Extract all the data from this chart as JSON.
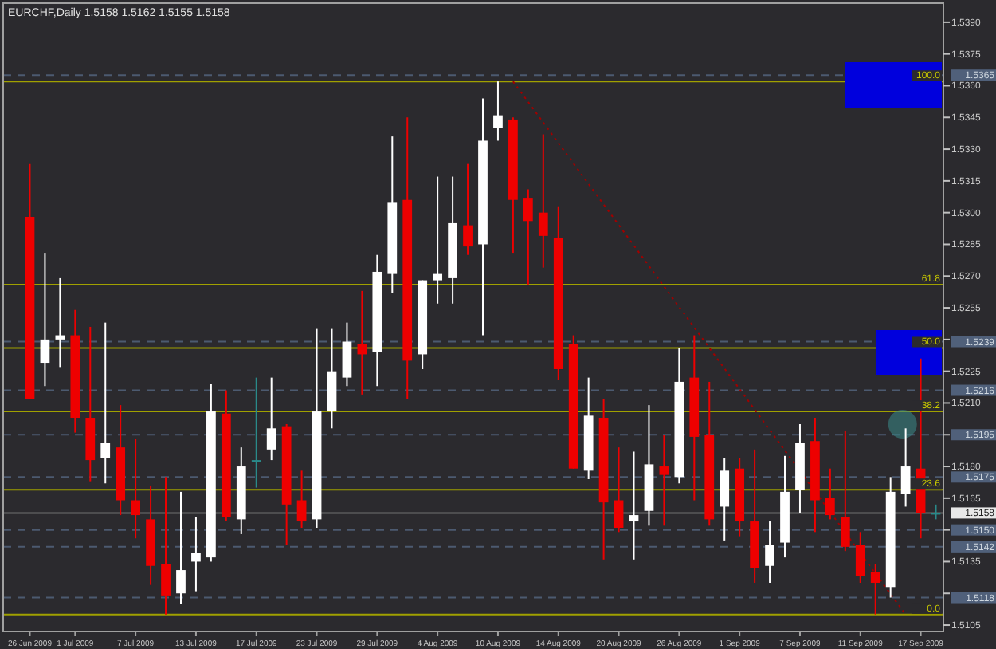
{
  "chart_data": {
    "type": "candlestick",
    "title": "EURCHF,Daily 1.5158 1.5162 1.5155 1.5158",
    "categories": [
      "26 Jun 2009",
      null,
      null,
      "1 Jul 2009",
      null,
      null,
      null,
      "7 Jul 2009",
      null,
      null,
      null,
      "13 Jul 2009",
      null,
      null,
      null,
      "17 Jul 2009",
      null,
      null,
      null,
      "23 Jul 2009",
      null,
      null,
      null,
      "29 Jul 2009",
      null,
      null,
      null,
      "4 Aug 2009",
      null,
      null,
      null,
      "10 Aug 2009",
      null,
      null,
      null,
      "14 Aug 2009",
      null,
      null,
      null,
      "20 Aug 2009",
      null,
      null,
      null,
      "26 Aug 2009",
      null,
      null,
      null,
      "1 Sep 2009",
      null,
      null,
      null,
      "7 Sep 2009",
      null,
      null,
      null,
      "11 Sep 2009",
      null,
      null,
      null,
      "17 Sep 2009",
      null
    ],
    "ohlc": [
      [
        1.5298,
        1.5323,
        1.5212,
        1.5212
      ],
      [
        1.5229,
        1.5281,
        1.5218,
        1.524
      ],
      [
        1.524,
        1.5269,
        1.5227,
        1.5242
      ],
      [
        1.5242,
        1.5254,
        1.5196,
        1.5203
      ],
      [
        1.5203,
        1.5246,
        1.5173,
        1.5183
      ],
      [
        1.5184,
        1.5248,
        1.5172,
        1.5191
      ],
      [
        1.5189,
        1.5209,
        1.5157,
        1.5164
      ],
      [
        1.5164,
        1.5193,
        1.5146,
        1.5157
      ],
      [
        1.5155,
        1.5171,
        1.5124,
        1.5133
      ],
      [
        1.5134,
        1.5175,
        1.511,
        1.5119
      ],
      [
        1.512,
        1.5168,
        1.5115,
        1.5131
      ],
      [
        1.5135,
        1.5156,
        1.5121,
        1.5139
      ],
      [
        1.5137,
        1.5219,
        1.5135,
        1.5206
      ],
      [
        1.5205,
        1.5216,
        1.5154,
        1.5156
      ],
      [
        1.5155,
        1.5189,
        1.5148,
        1.518
      ],
      [
        1.5183,
        1.5222,
        1.517,
        1.5183
      ],
      [
        1.5188,
        1.5222,
        1.5183,
        1.5198
      ],
      [
        1.5199,
        1.52,
        1.5143,
        1.5162
      ],
      [
        1.5164,
        1.5178,
        1.5151,
        1.5154
      ],
      [
        1.5155,
        1.5245,
        1.5151,
        1.5206
      ],
      [
        1.5206,
        1.5245,
        1.5198,
        1.5225
      ],
      [
        1.5222,
        1.5248,
        1.5218,
        1.5239
      ],
      [
        1.5238,
        1.5263,
        1.5214,
        1.5233
      ],
      [
        1.5234,
        1.528,
        1.5218,
        1.5272
      ],
      [
        1.5271,
        1.5336,
        1.5262,
        1.5305
      ],
      [
        1.5306,
        1.5345,
        1.5212,
        1.523
      ],
      [
        1.5233,
        1.5268,
        1.5226,
        1.5268
      ],
      [
        1.5268,
        1.5317,
        1.5257,
        1.5271
      ],
      [
        1.5269,
        1.5317,
        1.5257,
        1.5295
      ],
      [
        1.5294,
        1.5323,
        1.528,
        1.5284
      ],
      [
        1.5285,
        1.5354,
        1.5242,
        1.5334
      ],
      [
        1.534,
        1.5362,
        1.5334,
        1.5346
      ],
      [
        1.5344,
        1.5345,
        1.5281,
        1.5306
      ],
      [
        1.5307,
        1.5311,
        1.5266,
        1.5296
      ],
      [
        1.53,
        1.5337,
        1.5274,
        1.5289
      ],
      [
        1.5288,
        1.5303,
        1.5221,
        1.5226
      ],
      [
        1.5238,
        1.5242,
        1.5179,
        1.5179
      ],
      [
        1.5178,
        1.5222,
        1.5174,
        1.5204
      ],
      [
        1.5203,
        1.5212,
        1.5136,
        1.5163
      ],
      [
        1.5164,
        1.5189,
        1.5149,
        1.5151
      ],
      [
        1.5154,
        1.5187,
        1.5136,
        1.5157
      ],
      [
        1.5159,
        1.5209,
        1.5152,
        1.5181
      ],
      [
        1.518,
        1.5195,
        1.5152,
        1.5176
      ],
      [
        1.5175,
        1.5236,
        1.5172,
        1.522
      ],
      [
        1.5222,
        1.5242,
        1.5164,
        1.5194
      ],
      [
        1.5195,
        1.522,
        1.5152,
        1.5155
      ],
      [
        1.5161,
        1.5184,
        1.5145,
        1.5178
      ],
      [
        1.5179,
        1.5184,
        1.5147,
        1.5154
      ],
      [
        1.5154,
        1.5188,
        1.5125,
        1.5132
      ],
      [
        1.5133,
        1.5154,
        1.5125,
        1.5143
      ],
      [
        1.5144,
        1.5185,
        1.5137,
        1.5168
      ],
      [
        1.5169,
        1.52,
        1.5158,
        1.5191
      ],
      [
        1.5192,
        1.5203,
        1.5149,
        1.5164
      ],
      [
        1.5165,
        1.5179,
        1.5155,
        1.5157
      ],
      [
        1.5156,
        1.5197,
        1.514,
        1.5142
      ],
      [
        1.5143,
        1.5149,
        1.5125,
        1.5128
      ],
      [
        1.513,
        1.5134,
        1.511,
        1.5125
      ],
      [
        1.5123,
        1.5175,
        1.5118,
        1.5168
      ],
      [
        1.5167,
        1.5198,
        1.5161,
        1.518
      ],
      [
        1.5179,
        1.5231,
        1.5146,
        1.5158
      ],
      [
        1.5158,
        1.5162,
        1.5155,
        1.5158
      ]
    ],
    "colors": [
      "#ee0000",
      "#ffffff",
      "#ffffff",
      "#ee0000",
      "#ee0000",
      "#ffffff",
      "#ee0000",
      "#ee0000",
      "#ee0000",
      "#ee0000",
      "#ffffff",
      "#ffffff",
      "#ffffff",
      "#ee0000",
      "#ffffff",
      "#2a8a8a",
      "#ffffff",
      "#ee0000",
      "#ee0000",
      "#ffffff",
      "#ffffff",
      "#ffffff",
      "#ee0000",
      "#ffffff",
      "#ffffff",
      "#ee0000",
      "#ffffff",
      "#ffffff",
      "#ffffff",
      "#ee0000",
      "#ffffff",
      "#ffffff",
      "#ee0000",
      "#ee0000",
      "#ee0000",
      "#ee0000",
      "#ee0000",
      "#ffffff",
      "#ee0000",
      "#ee0000",
      "#ffffff",
      "#ffffff",
      "#ee0000",
      "#ffffff",
      "#ee0000",
      "#ee0000",
      "#ffffff",
      "#ee0000",
      "#ee0000",
      "#ffffff",
      "#ffffff",
      "#ffffff",
      "#ee0000",
      "#ee0000",
      "#ee0000",
      "#ee0000",
      "#ee0000",
      "#ffffff",
      "#ffffff",
      "#ee0000",
      "#2a8a8a"
    ],
    "series": [
      {
        "type": "line",
        "color": "#a00000",
        "line_style": "dotted",
        "values": [
          null,
          null,
          null,
          null,
          null,
          null,
          null,
          null,
          null,
          null,
          null,
          null,
          null,
          null,
          null,
          null,
          null,
          null,
          null,
          null,
          null,
          null,
          null,
          null,
          null,
          null,
          null,
          null,
          null,
          null,
          null,
          null,
          1.5362,
          null,
          null,
          null,
          null,
          null,
          null,
          null,
          null,
          null,
          null,
          null,
          null,
          null,
          null,
          null,
          null,
          null,
          null,
          null,
          null,
          null,
          null,
          null,
          null,
          null,
          1.511,
          null,
          null
        ]
      }
    ],
    "annotations": [
      {
        "text": "100.0",
        "y": 1.5362
      },
      {
        "text": "61.8",
        "y": 1.5266
      },
      {
        "text": "50.0",
        "y": 1.5236
      },
      {
        "text": "38.2",
        "y": 1.5206
      },
      {
        "text": "23.6",
        "y": 1.5169
      },
      {
        "text": "0.0",
        "y": 1.511
      }
    ],
    "ylim": [
      1.5102,
      1.5399
    ],
    "yticks": [
      {
        "value": 1.5105,
        "label": "1.5105"
      },
      {
        "value": 1.512,
        "label": null
      },
      {
        "value": 1.5135,
        "label": "1.5135"
      },
      {
        "value": 1.515,
        "label": null
      },
      {
        "value": 1.5165,
        "label": "1.5165"
      },
      {
        "value": 1.518,
        "label": "1.5180"
      },
      {
        "value": 1.5195,
        "label": null
      },
      {
        "value": 1.521,
        "label": "1.5210"
      },
      {
        "value": 1.5225,
        "label": "1.5225"
      },
      {
        "value": 1.524,
        "label": null
      },
      {
        "value": 1.5255,
        "label": "1.5255"
      },
      {
        "value": 1.527,
        "label": "1.5270"
      },
      {
        "value": 1.5285,
        "label": "1.5285"
      },
      {
        "value": 1.53,
        "label": "1.5300"
      },
      {
        "value": 1.5315,
        "label": "1.5315"
      },
      {
        "value": 1.533,
        "label": "1.5330"
      },
      {
        "value": 1.5345,
        "label": "1.5345"
      },
      {
        "value": 1.536,
        "label": "1.5360"
      },
      {
        "value": 1.5375,
        "label": "1.5375"
      },
      {
        "value": 1.539,
        "label": "1.5390"
      }
    ],
    "ref_lines": [
      {
        "axis": "y",
        "value": 1.5362,
        "color": "#a0a000",
        "line_style": "solid"
      },
      {
        "axis": "y",
        "value": 1.5266,
        "color": "#a0a000",
        "line_style": "solid"
      },
      {
        "axis": "y",
        "value": 1.5236,
        "color": "#a0a000",
        "line_style": "solid"
      },
      {
        "axis": "y",
        "value": 1.5206,
        "color": "#a0a000",
        "line_style": "solid"
      },
      {
        "axis": "y",
        "value": 1.5169,
        "color": "#a0a000",
        "line_style": "solid"
      },
      {
        "axis": "y",
        "value": 1.511,
        "color": "#a0a000",
        "line_style": "solid"
      },
      {
        "axis": "y",
        "value": 1.5365,
        "label": "1.5365",
        "color": "#4c5a70",
        "line_style": "dashed"
      },
      {
        "axis": "y",
        "value": 1.5239,
        "label": "1.5239",
        "color": "#4c5a70",
        "line_style": "dashed"
      },
      {
        "axis": "y",
        "value": 1.5216,
        "label": "1.5216",
        "color": "#4c5a70",
        "line_style": "dashed"
      },
      {
        "axis": "y",
        "value": 1.5195,
        "label": "1.5195",
        "color": "#4c5a70",
        "line_style": "dashed"
      },
      {
        "axis": "y",
        "value": 1.5175,
        "label": "1.5175",
        "color": "#4c5a70",
        "line_style": "dashed"
      },
      {
        "axis": "y",
        "value": 1.515,
        "label": "1.5150",
        "color": "#4c5a70",
        "line_style": "dashed"
      },
      {
        "axis": "y",
        "value": 1.5142,
        "label": "1.5142",
        "color": "#4c5a70",
        "line_style": "dashed"
      },
      {
        "axis": "y",
        "value": 1.5118,
        "label": "1.5118",
        "color": "#4c5a70",
        "line_style": "dashed"
      },
      {
        "axis": "y",
        "value": 1.5158,
        "label": "1.5158",
        "color": "#707070",
        "line_style": "solid"
      }
    ]
  }
}
